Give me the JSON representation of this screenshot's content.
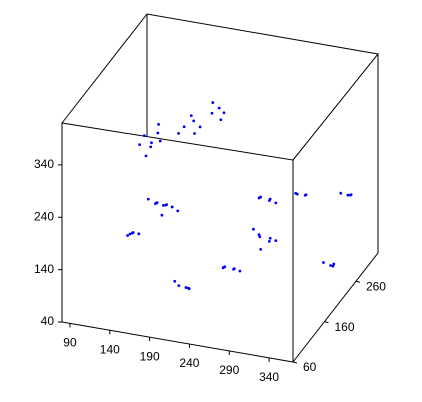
{
  "chart_data": {
    "type": "scatter3d",
    "xlim": [
      80,
      370
    ],
    "ylim": [
      60,
      330
    ],
    "zlim": [
      40,
      420
    ],
    "xticks": [
      90,
      140,
      190,
      240,
      290,
      340
    ],
    "yticks": [
      60,
      160,
      260
    ],
    "zticks": [
      40,
      140,
      240,
      340
    ],
    "series": [
      {
        "color": "#0000ff",
        "x": [
          130,
          140,
          145,
          135,
          150,
          128,
          142,
          138,
          180,
          190,
          195,
          185,
          200,
          175,
          215,
          222,
          228,
          212,
          230,
          145,
          155,
          160,
          140,
          150,
          165,
          148,
          158,
          135,
          170,
          115,
          110,
          125,
          105,
          120,
          275,
          285,
          290,
          270,
          280,
          295,
          320,
          330,
          335,
          318,
          345,
          355,
          360,
          350,
          275,
          285,
          290,
          270,
          280,
          295,
          265,
          230,
          240,
          245,
          225,
          250,
          235,
          195,
          205,
          210,
          200,
          190,
          345,
          355,
          360,
          350
        ],
        "y": [
          195,
          190,
          200,
          205,
          195,
          185,
          210,
          180,
          195,
          200,
          190,
          205,
          195,
          190,
          195,
          200,
          190,
          205,
          195,
          195,
          200,
          190,
          205,
          185,
          195,
          210,
          180,
          195,
          200,
          195,
          200,
          190,
          205,
          185,
          195,
          200,
          190,
          205,
          185,
          195,
          195,
          200,
          190,
          205,
          275,
          280,
          270,
          285,
          195,
          200,
          190,
          205,
          185,
          195,
          200,
          195,
          200,
          190,
          205,
          195,
          185,
          140,
          145,
          135,
          150,
          140,
          220,
          225,
          215,
          230
        ],
        "z": [
          305,
          290,
          310,
          285,
          300,
          295,
          318,
          280,
          335,
          345,
          330,
          350,
          340,
          325,
          370,
          378,
          365,
          382,
          375,
          180,
          175,
          185,
          170,
          190,
          178,
          165,
          172,
          185,
          168,
          115,
          108,
          120,
          100,
          125,
          225,
          218,
          230,
          215,
          235,
          220,
          245,
          240,
          250,
          235,
          190,
          185,
          195,
          180,
          150,
          140,
          155,
          145,
          135,
          148,
          158,
          80,
          75,
          85,
          70,
          78,
          90,
          78,
          72,
          80,
          68,
          85,
          100,
          92,
          105,
          88
        ]
      }
    ]
  }
}
